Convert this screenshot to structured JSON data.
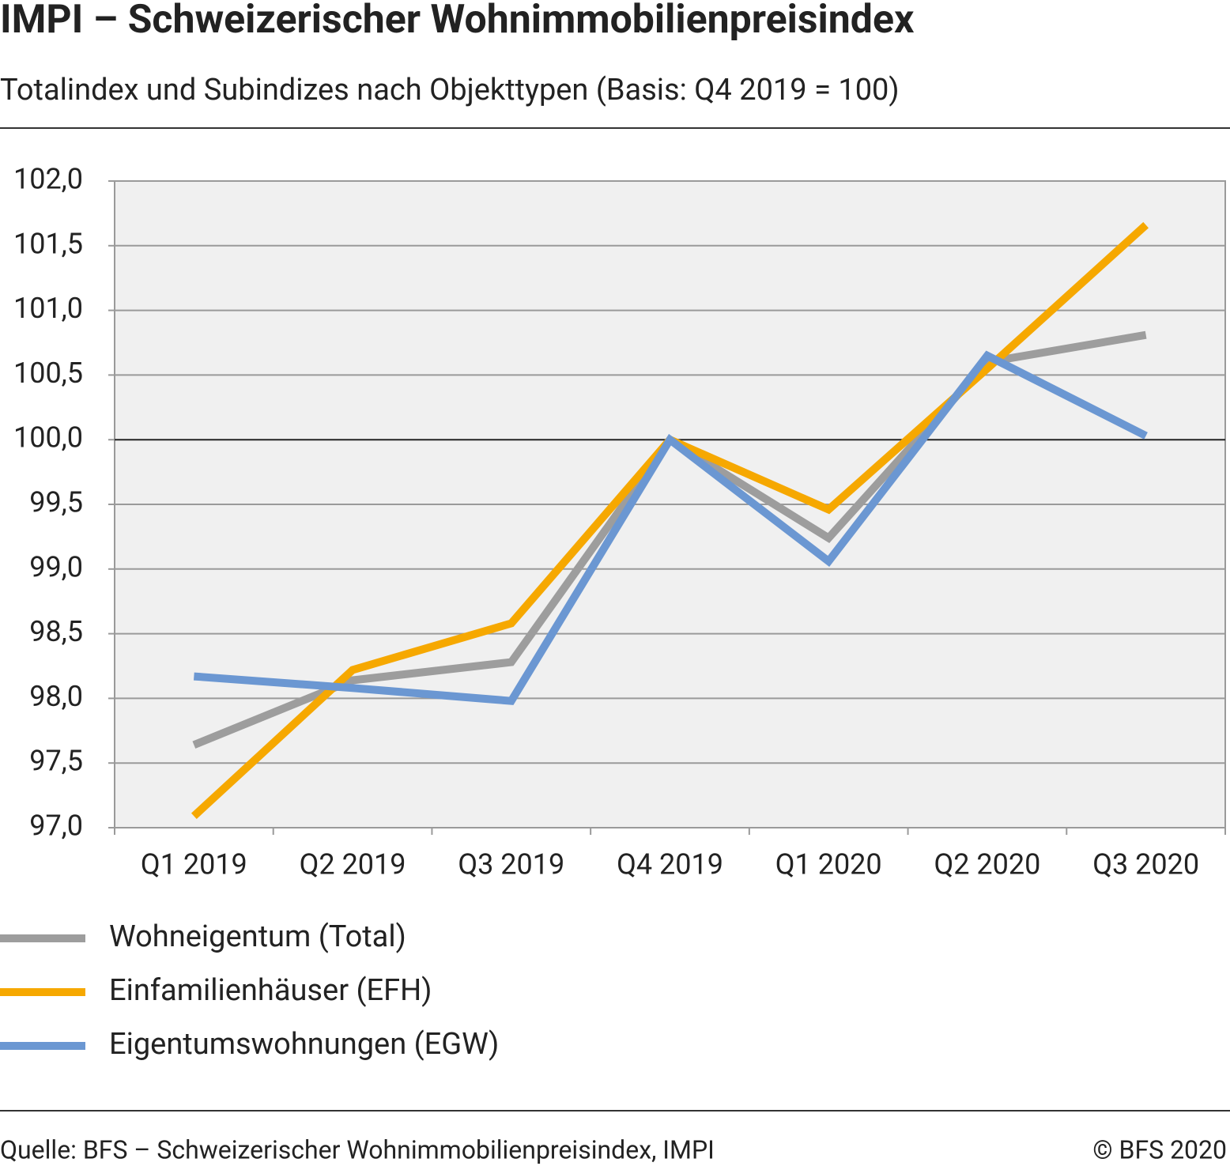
{
  "chart_data": {
    "type": "line",
    "title": "IMPI – Schweizerischer Wohnimmobilienpreisindex",
    "subtitle": "Totalindex und Subindizes nach Objekttypen (Basis: Q4 2019 = 100)",
    "categories": [
      "Q1 2019",
      "Q2 2019",
      "Q3 2019",
      "Q4 2019",
      "Q1 2020",
      "Q2 2020",
      "Q3 2020"
    ],
    "series": [
      {
        "name": "Wohneigentum (Total)",
        "color": "#9d9d9d",
        "values": [
          97.64,
          98.14,
          98.28,
          100.0,
          99.24,
          100.6,
          100.81
        ]
      },
      {
        "name": "Einfamilienhäuser (EFH)",
        "color": "#f6a800",
        "values": [
          97.09,
          98.22,
          98.58,
          100.0,
          99.46,
          100.55,
          101.66
        ]
      },
      {
        "name": "Eigentumswohnungen (EGW)",
        "color": "#6b97d2",
        "values": [
          98.17,
          98.08,
          97.98,
          100.0,
          99.06,
          100.65,
          100.03
        ]
      }
    ],
    "ylim": [
      97,
      102
    ],
    "yticks": [
      {
        "value": 97,
        "label": "97,0"
      },
      {
        "value": 97.5,
        "label": "97,5"
      },
      {
        "value": 98,
        "label": "98,0"
      },
      {
        "value": 98.5,
        "label": "98,5"
      },
      {
        "value": 99,
        "label": "99,0"
      },
      {
        "value": 99.5,
        "label": "99,5"
      },
      {
        "value": 100,
        "label": "100,0"
      },
      {
        "value": 100.5,
        "label": "100,5"
      },
      {
        "value": 101,
        "label": "101,0"
      },
      {
        "value": 101.5,
        "label": "101,5"
      },
      {
        "value": 102,
        "label": "102,0"
      }
    ],
    "grid": true,
    "reference_line": 100,
    "legend": "bottom",
    "source": "Quelle: BFS – Schweizerischer Wohnimmobilienpreisindex, IMPI",
    "copyright": "© BFS 2020"
  }
}
